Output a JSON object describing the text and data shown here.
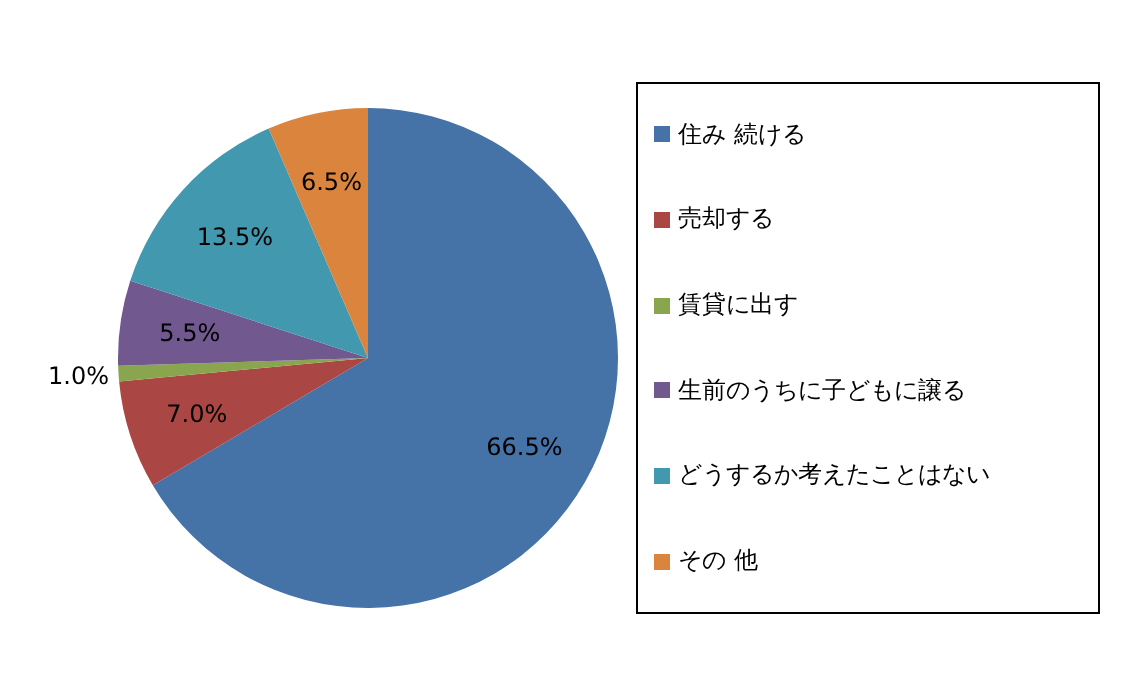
{
  "chart_data": {
    "type": "pie",
    "categories": [
      "住み 続ける",
      "売却する",
      "賃貸に出す",
      "生前のうちに子どもに譲る",
      "どうするか考えたことはない",
      "その 他"
    ],
    "values": [
      66.5,
      7.0,
      1.0,
      5.5,
      13.5,
      6.5
    ],
    "value_labels": [
      "66.5%",
      "7.0%",
      "1.0%",
      "5.5%",
      "13.5%",
      "6.5%"
    ],
    "colors": [
      "#4572a7",
      "#aa4643",
      "#89a54e",
      "#71588f",
      "#4198af",
      "#db843d"
    ],
    "legend": "right"
  }
}
